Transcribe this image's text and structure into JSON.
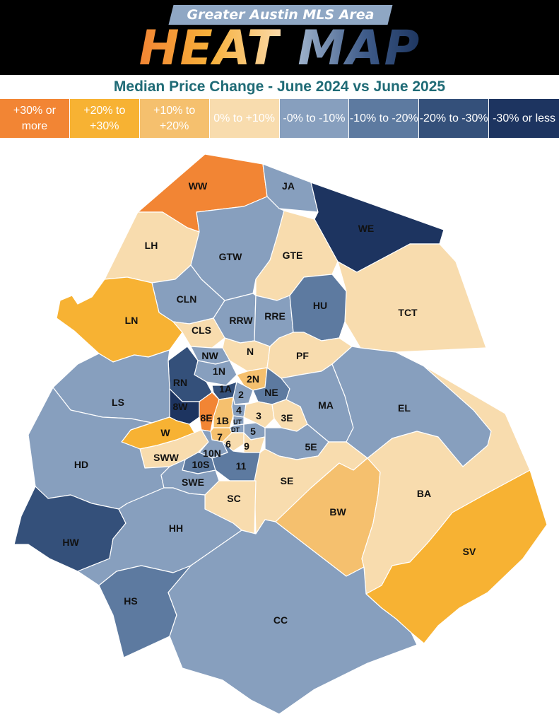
{
  "header": {
    "banner": "Greater Austin MLS Area",
    "title_heat": "HEAT",
    "title_map": "MAP"
  },
  "subtitle": "Median Price Change - June 2024 vs June 2025",
  "legend": [
    {
      "label": "+30% or more",
      "color": "#f28534"
    },
    {
      "label": "+20% to +30%",
      "color": "#f7b233"
    },
    {
      "label": "+10% to +20%",
      "color": "#f5c06e"
    },
    {
      "label": "0% to +10%",
      "color": "#f8dcae"
    },
    {
      "label": "-0% to -10%",
      "color": "#879fbe"
    },
    {
      "label": "-10% to -20%",
      "color": "#5d7aa0"
    },
    {
      "label": "-20% to -30%",
      "color": "#34507a"
    },
    {
      "label": "-30% or less",
      "color": "#1d3460"
    }
  ],
  "areas": [
    {
      "code": "WW",
      "color": "#f28534"
    },
    {
      "code": "JA",
      "color": "#879fbe"
    },
    {
      "code": "WE",
      "color": "#1d3460"
    },
    {
      "code": "LH",
      "color": "#f8dcae"
    },
    {
      "code": "GTW",
      "color": "#879fbe"
    },
    {
      "code": "GTE",
      "color": "#f8dcae"
    },
    {
      "code": "TCT",
      "color": "#f8dcae"
    },
    {
      "code": "CLN",
      "color": "#879fbe"
    },
    {
      "code": "LN",
      "color": "#f7b233"
    },
    {
      "code": "RRW",
      "color": "#879fbe"
    },
    {
      "code": "RRE",
      "color": "#879fbe"
    },
    {
      "code": "HU",
      "color": "#5d7aa0"
    },
    {
      "code": "CLS",
      "color": "#f8dcae"
    },
    {
      "code": "N",
      "color": "#f8dcae"
    },
    {
      "code": "PF",
      "color": "#f8dcae"
    },
    {
      "code": "NW",
      "color": "#879fbe"
    },
    {
      "code": "1N",
      "color": "#879fbe"
    },
    {
      "code": "2N",
      "color": "#f5c06e"
    },
    {
      "code": "RN",
      "color": "#34507a"
    },
    {
      "code": "1A",
      "color": "#34507a"
    },
    {
      "code": "2",
      "color": "#879fbe"
    },
    {
      "code": "NE",
      "color": "#5d7aa0"
    },
    {
      "code": "LS",
      "color": "#879fbe"
    },
    {
      "code": "8W",
      "color": "#1d3460"
    },
    {
      "code": "8E",
      "color": "#f28534"
    },
    {
      "code": "4",
      "color": "#879fbe"
    },
    {
      "code": "1B",
      "color": "#f5c06e"
    },
    {
      "code": "UT",
      "color": "#879fbe"
    },
    {
      "code": "DT",
      "color": "#879fbe"
    },
    {
      "code": "3",
      "color": "#f8dcae"
    },
    {
      "code": "3E",
      "color": "#f8dcae"
    },
    {
      "code": "MA",
      "color": "#879fbe"
    },
    {
      "code": "EL",
      "color": "#879fbe"
    },
    {
      "code": "W",
      "color": "#f7b233"
    },
    {
      "code": "5",
      "color": "#879fbe"
    },
    {
      "code": "7",
      "color": "#f5c06e"
    },
    {
      "code": "6",
      "color": "#f8dcae"
    },
    {
      "code": "9",
      "color": "#f8dcae"
    },
    {
      "code": "5E",
      "color": "#879fbe"
    },
    {
      "code": "SWW",
      "color": "#f8dcae"
    },
    {
      "code": "10N",
      "color": "#879fbe"
    },
    {
      "code": "10S",
      "color": "#5d7aa0"
    },
    {
      "code": "11",
      "color": "#5d7aa0"
    },
    {
      "code": "HD",
      "color": "#879fbe"
    },
    {
      "code": "SWE",
      "color": "#879fbe"
    },
    {
      "code": "SE",
      "color": "#f8dcae"
    },
    {
      "code": "SC",
      "color": "#f8dcae"
    },
    {
      "code": "BW",
      "color": "#f5c06e"
    },
    {
      "code": "BA",
      "color": "#f8dcae"
    },
    {
      "code": "HW",
      "color": "#34507a"
    },
    {
      "code": "HH",
      "color": "#879fbe"
    },
    {
      "code": "SV",
      "color": "#f7b233"
    },
    {
      "code": "HS",
      "color": "#5d7aa0"
    },
    {
      "code": "CC",
      "color": "#879fbe"
    }
  ]
}
